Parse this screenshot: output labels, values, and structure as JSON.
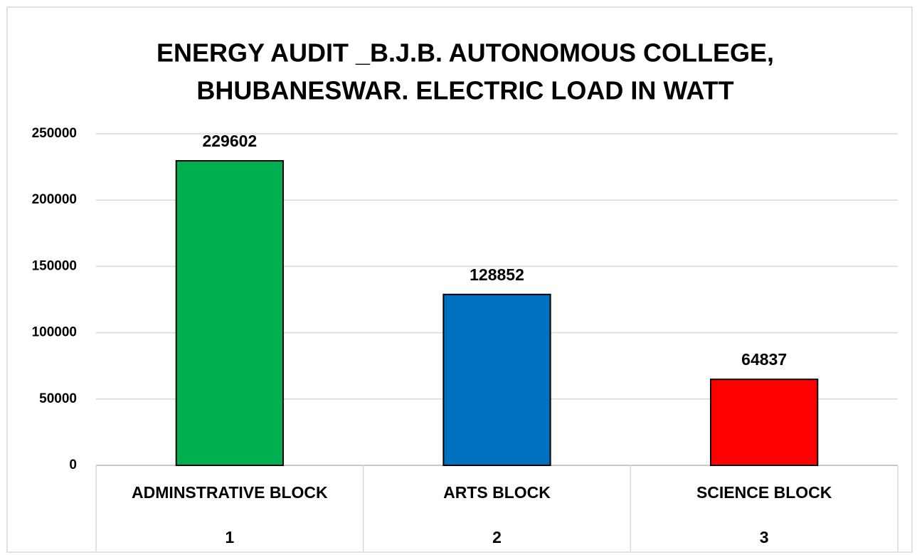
{
  "chart_data": {
    "type": "bar",
    "title": [
      "ENERGY AUDIT _B.J.B. AUTONOMOUS COLLEGE,",
      "BHUBANESWAR. ELECTRIC LOAD IN WATT"
    ],
    "categories": [
      "ADMINSTRATIVE BLOCK",
      "ARTS BLOCK",
      "SCIENCE BLOCK"
    ],
    "category_numbers": [
      "1",
      "2",
      "3"
    ],
    "values": [
      229602,
      128852,
      64837
    ],
    "colors": [
      "#00b050",
      "#0070c0",
      "#ff0000"
    ],
    "ylim": [
      0,
      250000
    ],
    "yticks": [
      0,
      50000,
      100000,
      150000,
      200000,
      250000
    ],
    "grid": true
  }
}
